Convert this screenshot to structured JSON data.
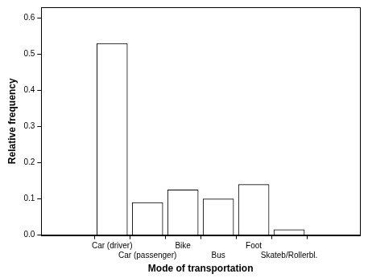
{
  "chart_data": {
    "type": "bar",
    "x_label": "Mode of transportation",
    "y_label": "Relative frequency",
    "categories": [
      "Car (driver)",
      "Car (passenger)",
      "Bike",
      "Bus",
      "Foot",
      "Skateb/Rollerbl."
    ],
    "values": [
      0.53,
      0.09,
      0.125,
      0.1,
      0.14,
      0.015
    ],
    "color": "#ffffff",
    "ylim": [
      0,
      0.63
    ],
    "yticks": [
      {
        "value": 0,
        "label": "0.0"
      },
      0.1,
      0.2,
      0.3,
      0.4,
      0.5,
      0.6
    ],
    "grid": false
  }
}
